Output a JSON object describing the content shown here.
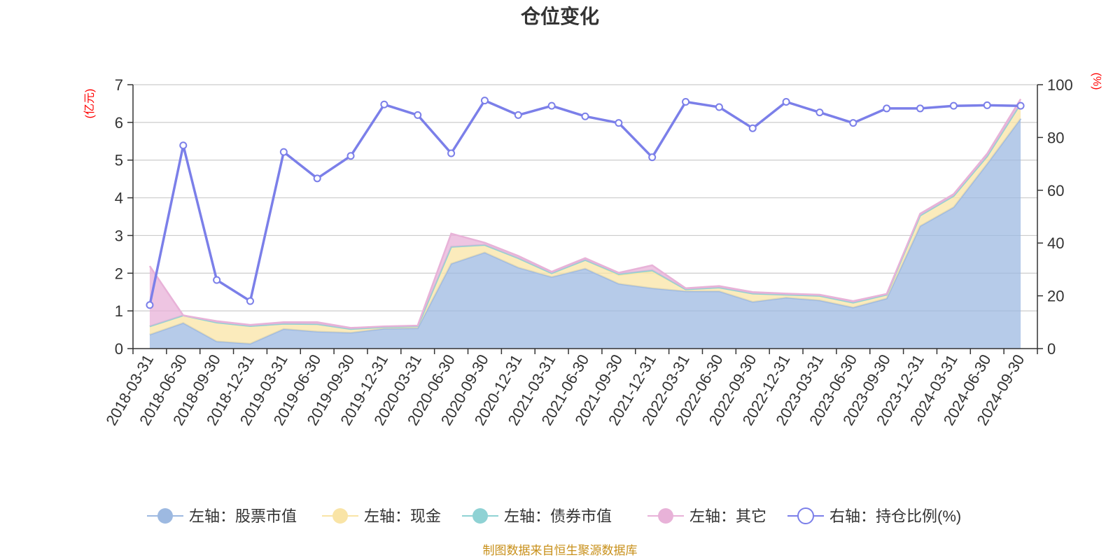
{
  "chart_data": {
    "type": "area",
    "title": "仓位变化",
    "left_axis_unit": "(亿元)",
    "right_axis_unit": "(%)",
    "ylim_left": [
      0,
      7
    ],
    "ylim_right": [
      0,
      100
    ],
    "left_ticks": [
      0,
      1,
      2,
      3,
      4,
      5,
      6,
      7
    ],
    "right_ticks": [
      0,
      20,
      40,
      60,
      80,
      100
    ],
    "grid": true,
    "legend_position": "bottom",
    "categories": [
      "2018-03-31",
      "2018-06-30",
      "2018-09-30",
      "2018-12-31",
      "2019-03-31",
      "2019-06-30",
      "2019-09-30",
      "2019-12-31",
      "2020-03-31",
      "2020-06-30",
      "2020-09-30",
      "2020-12-31",
      "2021-03-31",
      "2021-06-30",
      "2021-09-30",
      "2021-12-31",
      "2022-03-31",
      "2022-06-30",
      "2022-09-30",
      "2022-12-31",
      "2023-03-31",
      "2023-06-30",
      "2023-09-30",
      "2023-12-31",
      "2024-03-31",
      "2024-06-30",
      "2024-09-30"
    ],
    "series": [
      {
        "name": "左轴：股票市值",
        "axis": "left",
        "kind": "area",
        "color": "#9db9e1",
        "values": [
          0.37,
          0.68,
          0.19,
          0.13,
          0.52,
          0.45,
          0.42,
          0.53,
          0.54,
          2.25,
          2.55,
          2.15,
          1.9,
          2.12,
          1.72,
          1.6,
          1.52,
          1.52,
          1.24,
          1.35,
          1.28,
          1.09,
          1.33,
          3.25,
          3.75,
          4.9,
          6.1
        ]
      },
      {
        "name": "左轴：现金",
        "axis": "left",
        "kind": "area",
        "color": "#f9e4a6",
        "values": [
          0.22,
          0.2,
          0.5,
          0.47,
          0.14,
          0.2,
          0.1,
          0.04,
          0.05,
          0.45,
          0.2,
          0.25,
          0.1,
          0.23,
          0.23,
          0.45,
          0.05,
          0.1,
          0.22,
          0.08,
          0.12,
          0.13,
          0.1,
          0.28,
          0.3,
          0.2,
          0.4
        ]
      },
      {
        "name": "左轴：债券市值",
        "axis": "left",
        "kind": "area",
        "color": "#8fd2d4",
        "values": [
          0,
          0,
          0,
          0,
          0,
          0,
          0,
          0,
          0,
          0,
          0,
          0,
          0,
          0,
          0.03,
          0.03,
          0,
          0,
          0,
          0,
          0,
          0,
          0,
          0,
          0,
          0,
          0
        ]
      },
      {
        "name": "左轴：其它",
        "axis": "left",
        "kind": "area",
        "color": "#e8b2d8",
        "values": [
          1.6,
          0,
          0.04,
          0.03,
          0.04,
          0.05,
          0.03,
          0.02,
          0.02,
          0.35,
          0.06,
          0.06,
          0.04,
          0.05,
          0.03,
          0.13,
          0.03,
          0.04,
          0.04,
          0.03,
          0.03,
          0.04,
          0.02,
          0.05,
          0.05,
          0.07,
          0.12
        ]
      },
      {
        "name": "右轴：持仓比例(%)",
        "axis": "right",
        "kind": "line",
        "color": "#7b7fe9",
        "values": [
          16.5,
          77,
          26,
          18,
          74.5,
          64.5,
          73,
          92.5,
          88.5,
          74,
          94,
          88.5,
          92,
          88,
          85.5,
          72.5,
          93.5,
          91.5,
          83.5,
          93.5,
          89.5,
          85.5,
          91,
          91,
          92,
          92.2,
          92
        ]
      }
    ]
  },
  "footer": {
    "source": "制图数据来自恒生聚源数据库"
  }
}
